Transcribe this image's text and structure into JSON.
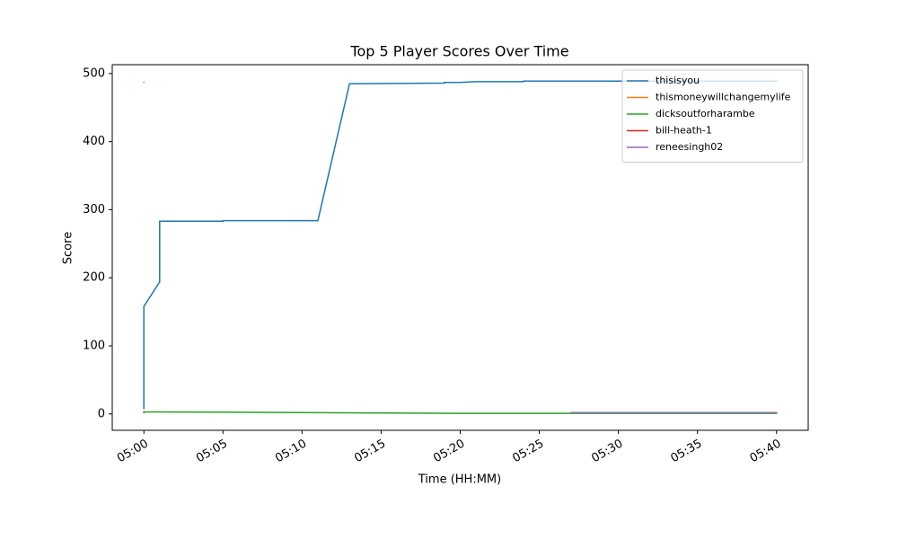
{
  "chart_data": {
    "type": "line",
    "title": "Top 5 Player Scores Over Time",
    "xlabel": "Time (HH:MM)",
    "ylabel": "Score",
    "xlim": [
      "04:58",
      "05:42"
    ],
    "xticks": [
      "05:00",
      "05:05",
      "05:10",
      "05:15",
      "05:20",
      "05:25",
      "05:30",
      "05:35",
      "05:40"
    ],
    "ylim": [
      -24,
      513
    ],
    "yticks": [
      0,
      100,
      200,
      300,
      400,
      500
    ],
    "legend": "upper right",
    "series": [
      {
        "name": "thisisyou",
        "color": "#1f77b4",
        "x": [
          "05:00",
          "05:00",
          "05:01",
          "05:01",
          "05:01",
          "05:05",
          "05:05",
          "05:11",
          "05:13",
          "05:19",
          "05:19",
          "05:20",
          "05:21",
          "05:24",
          "05:24",
          "05:40"
        ],
        "values": [
          8,
          158,
          194,
          265,
          283,
          283,
          284,
          284,
          485,
          486,
          487,
          487,
          488,
          488,
          489,
          489
        ]
      },
      {
        "name": "thismoneywillchangemylife",
        "color": "#ff7f0e",
        "x": [
          "05:00",
          "05:00"
        ],
        "values": [
          487,
          487
        ]
      },
      {
        "name": "dicksoutforharambe",
        "color": "#2ca02c",
        "x": [
          "05:00",
          "05:20",
          "05:40"
        ],
        "values": [
          3,
          1,
          1
        ]
      },
      {
        "name": "bill-heath-1",
        "color": "#d62728",
        "x": [
          "05:00",
          "05:00"
        ],
        "values": [
          2,
          2
        ]
      },
      {
        "name": "reneesingh02",
        "color": "#9467bd",
        "x": [
          "05:27",
          "05:40"
        ],
        "values": [
          2,
          2
        ]
      }
    ]
  }
}
